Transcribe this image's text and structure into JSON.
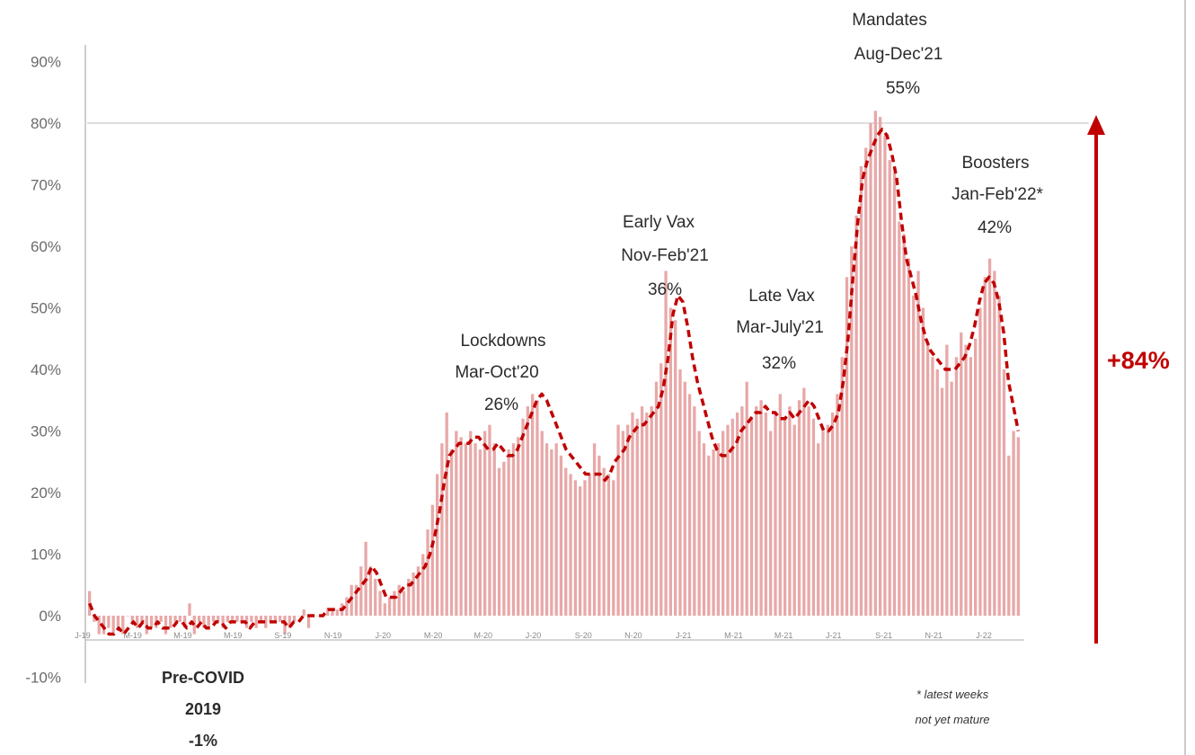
{
  "chart_data": {
    "type": "bar",
    "x_unit": "week",
    "ylim": [
      -10,
      90
    ],
    "y_ticks": [
      "-10%",
      "0%",
      "10%",
      "20%",
      "30%",
      "40%",
      "50%",
      "60%",
      "70%",
      "80%",
      "90%"
    ],
    "x_ticks": [
      "J-19",
      "M-19",
      "M-19",
      "M-19",
      "S-19",
      "N-19",
      "J-20",
      "M-20",
      "M-20",
      "J-20",
      "S-20",
      "N-20",
      "J-21",
      "M-21",
      "M-21",
      "J-21",
      "S-21",
      "N-21",
      "J-22"
    ],
    "grid": "single reference line at 80%",
    "series": [
      {
        "mark": "bar",
        "color": "#e8a8a8",
        "values": [
          4,
          -1,
          -3,
          -3,
          -2,
          -3,
          -2,
          -3,
          0,
          -1,
          -2,
          -1,
          -3,
          -2,
          -2,
          -1,
          -3,
          -2,
          -1,
          -1,
          -2,
          2,
          -3,
          -1,
          -2,
          -2,
          -1,
          -1,
          -2,
          -1,
          -1,
          -1,
          -1,
          -2,
          -1,
          -2,
          -1,
          -2,
          -1,
          -1,
          -1,
          -3,
          -2,
          -1,
          0,
          1,
          -2,
          0,
          0,
          0,
          1,
          1,
          1,
          2,
          3,
          5,
          5,
          8,
          12,
          8,
          6,
          4,
          2,
          3,
          4,
          5,
          4,
          6,
          7,
          8,
          10,
          14,
          18,
          23,
          28,
          33,
          27,
          30,
          29,
          28,
          30,
          28,
          27,
          30,
          31,
          28,
          24,
          25,
          27,
          28,
          29,
          32,
          34,
          36,
          35,
          30,
          28,
          27,
          28,
          26,
          24,
          23,
          22,
          21,
          22,
          23,
          28,
          26,
          24,
          23,
          22,
          31,
          30,
          31,
          33,
          32,
          34,
          33,
          34,
          38,
          41,
          56,
          50,
          48,
          40,
          38,
          36,
          34,
          30,
          28,
          26,
          27,
          28,
          30,
          31,
          32,
          33,
          34,
          38,
          32,
          34,
          35,
          33,
          30,
          33,
          36,
          32,
          34,
          31,
          35,
          37,
          34,
          32,
          28,
          30,
          31,
          33,
          36,
          42,
          55,
          60,
          65,
          73,
          76,
          80,
          82,
          81,
          78,
          74,
          72,
          64,
          62,
          58,
          52,
          56,
          50,
          44,
          42,
          40,
          37,
          44,
          38,
          42,
          46,
          44,
          42,
          45,
          50,
          55,
          58,
          56,
          52,
          40,
          26,
          30,
          29
        ]
      },
      {
        "mark": "dashed-line",
        "color": "#c00000",
        "values": [
          2,
          0,
          -1,
          -2,
          -3,
          -3,
          -2,
          -3,
          -2,
          -1,
          -2,
          -1,
          -2,
          -2,
          -1,
          -2,
          -2,
          -2,
          -1,
          -1,
          -2,
          -1,
          -2,
          -1,
          -2,
          -2,
          -1,
          -1,
          -2,
          -1,
          -1,
          -1,
          -1,
          -2,
          -1,
          -1,
          -1,
          -1,
          -1,
          -1,
          -1,
          -2,
          -1,
          -1,
          0,
          0,
          0,
          0,
          0,
          1,
          1,
          1,
          1,
          2,
          3,
          4,
          5,
          6,
          8,
          7,
          5,
          3,
          3,
          3,
          4,
          5,
          5,
          6,
          7,
          8,
          10,
          13,
          17,
          22,
          26,
          27,
          28,
          28,
          28,
          29,
          29,
          28,
          27,
          27,
          28,
          27,
          26,
          26,
          27,
          29,
          31,
          33,
          35,
          36,
          35,
          33,
          31,
          29,
          27,
          26,
          25,
          24,
          23,
          23,
          23,
          23,
          22,
          23,
          25,
          26,
          27,
          29,
          30,
          31,
          31,
          32,
          33,
          34,
          37,
          42,
          49,
          52,
          51,
          47,
          42,
          38,
          35,
          32,
          29,
          27,
          26,
          26,
          27,
          28,
          30,
          31,
          32,
          33,
          33,
          34,
          33,
          33,
          32,
          32,
          33,
          32,
          33,
          34,
          35,
          34,
          32,
          30,
          30,
          31,
          33,
          38,
          45,
          55,
          64,
          71,
          74,
          76,
          78,
          79,
          78,
          75,
          71,
          64,
          58,
          55,
          52,
          48,
          45,
          43,
          42,
          41,
          40,
          40,
          40,
          41,
          42,
          44,
          47,
          51,
          54,
          55,
          54,
          51,
          46,
          38,
          34,
          30
        ]
      }
    ],
    "annotations": {
      "pre_covid": [
        "Pre-COVID",
        "2019",
        "-1%"
      ],
      "lockdowns": [
        "Lockdowns",
        "Mar-Oct'20",
        "26%"
      ],
      "early_vax": [
        "Early Vax",
        "Nov-Feb'21",
        "36%"
      ],
      "late_vax": [
        "Late Vax",
        "Mar-July'21",
        "32%"
      ],
      "mandates": [
        "Mandates",
        "Aug-Dec'21",
        "55%"
      ],
      "boosters": [
        "Boosters",
        "Jan-Feb'22*",
        "42%"
      ],
      "total_change": "+84%",
      "footnote": [
        "* latest weeks",
        "not yet mature"
      ]
    },
    "colors": {
      "accent": "#c00000",
      "bars": "#e8a8a8"
    }
  }
}
